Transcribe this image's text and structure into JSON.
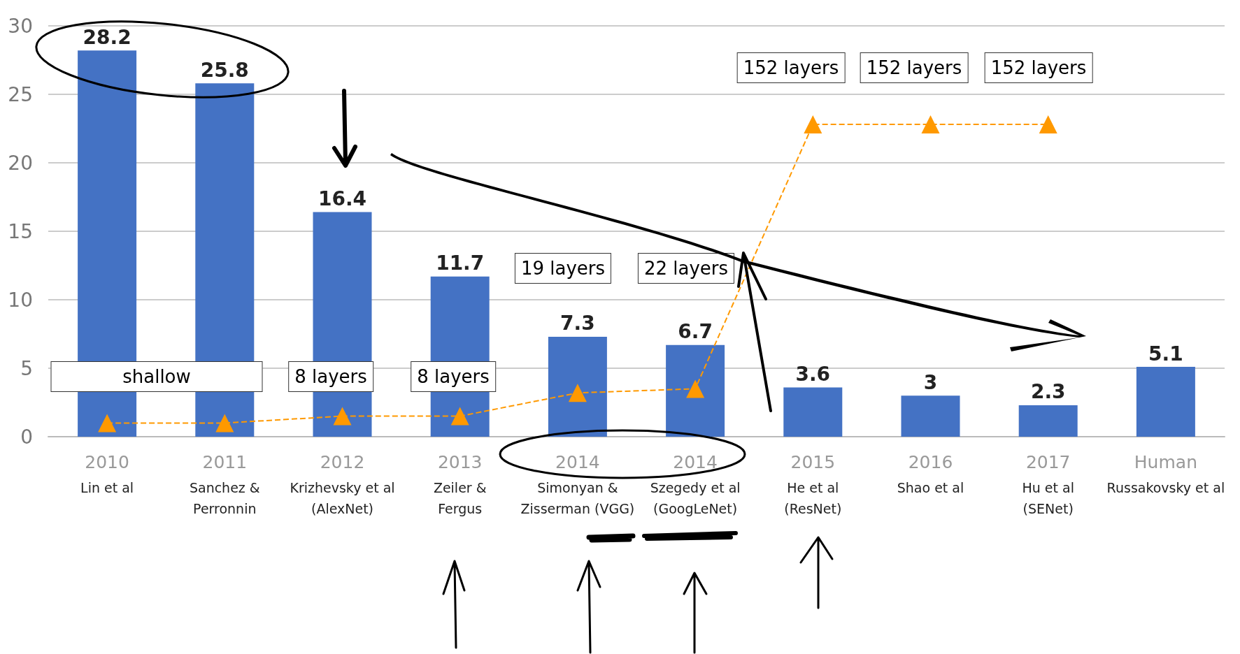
{
  "chart_data": {
    "type": "bar",
    "categories": [
      "2010\nLin et al",
      "2011\nSanchez &\nPerronnin",
      "2012\nKrizhevsky et al\n(AlexNet)",
      "2013\nZeiler &\nFergus",
      "2014\nSimonyan &\nZisserman (VGG)",
      "2014\nSzegedy et al\n(GoogLeNet)",
      "2015\nHe et al\n(ResNet)",
      "2016\nShao et al",
      "2017\nHu et al\n(SENet)",
      "Human\nRussakovsky et al"
    ],
    "series": [
      {
        "color": "#4472c4",
        "values": [
          28.2,
          25.8,
          16.4,
          11.7,
          7.3,
          6.7,
          3.6,
          3,
          2.3,
          5.1
        ],
        "data_labels": true
      },
      {
        "type": "line",
        "color": "#ff9900",
        "marker": "triangle",
        "line_style": "dashed",
        "values": [
          1,
          1,
          1.5,
          1.5,
          3.2,
          3.5,
          22.8,
          22.8,
          22.8,
          null
        ]
      }
    ],
    "ylim": [
      0,
      30
    ],
    "yticks": [
      0,
      5,
      10,
      15,
      20,
      25,
      30
    ],
    "grid": "y",
    "annotations": [
      "shallow",
      "8 layers",
      "8 layers",
      "19 layers",
      "22 layers",
      "152 layers",
      "152 layers",
      "152 layers"
    ]
  }
}
